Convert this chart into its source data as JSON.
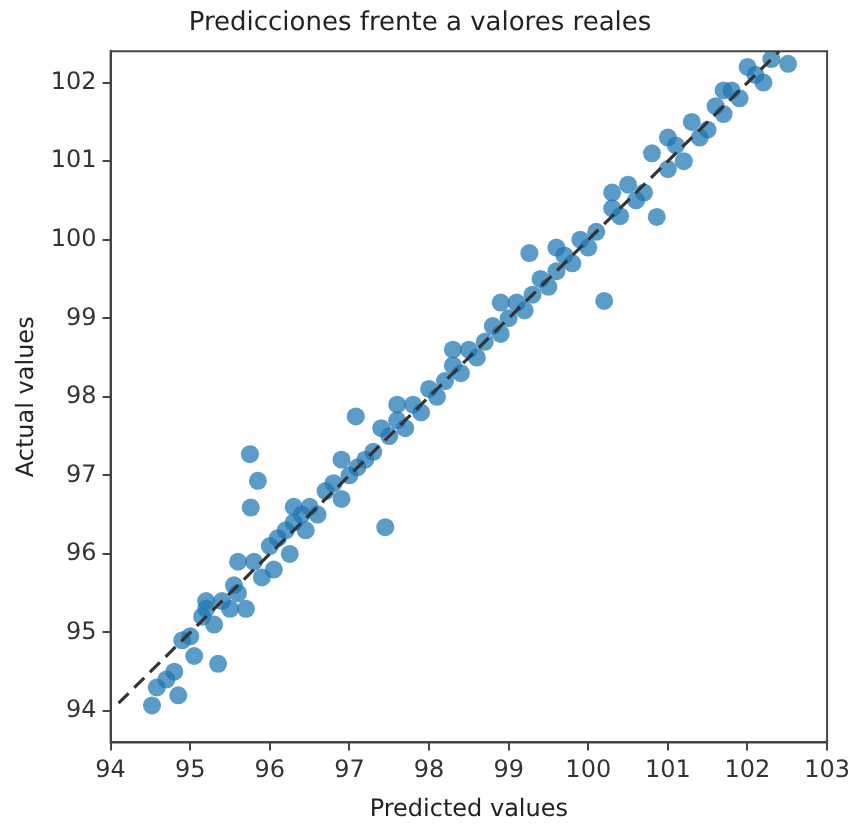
{
  "chart_data": {
    "type": "scatter",
    "title": "Predicciones frente a valores reales",
    "xlabel": "Predicted values",
    "ylabel": "Actual values",
    "xlim": [
      94,
      103
    ],
    "ylim": [
      93.6,
      102.4
    ],
    "xticks": [
      94,
      95,
      96,
      97,
      98,
      99,
      100,
      101,
      102,
      103
    ],
    "yticks": [
      94,
      95,
      96,
      97,
      98,
      99,
      100,
      101,
      102
    ],
    "grid": false,
    "legend": false,
    "marker": "circle",
    "series": [
      {
        "type": "scatter",
        "color": "#1f77b4",
        "x": [
          94.52,
          94.58,
          94.7,
          94.8,
          94.85,
          94.9,
          95.0,
          95.05,
          95.15,
          95.2,
          95.3,
          95.35,
          95.4,
          95.5,
          95.55,
          95.6,
          95.7,
          95.75,
          95.85,
          95.76,
          95.8,
          95.9,
          96.0,
          96.05,
          96.1,
          96.2,
          96.25,
          96.3,
          96.4,
          96.45,
          96.5,
          96.6,
          96.7,
          96.8,
          96.9,
          97.0,
          97.08,
          97.1,
          97.2,
          97.3,
          97.45,
          97.4,
          97.5,
          97.6,
          97.7,
          97.8,
          97.9,
          98.0,
          98.1,
          98.2,
          98.3,
          98.4,
          98.5,
          98.6,
          98.7,
          98.8,
          98.9,
          99.0,
          99.1,
          99.2,
          99.26,
          99.3,
          99.4,
          99.5,
          99.6,
          99.7,
          99.8,
          99.9,
          100.0,
          100.1,
          100.2,
          100.3,
          100.4,
          100.5,
          100.6,
          100.7,
          100.86,
          100.8,
          101.0,
          101.1,
          101.2,
          101.3,
          101.4,
          101.5,
          101.6,
          101.7,
          101.8,
          101.9,
          102.0,
          102.1,
          102.2,
          102.51,
          95.2,
          95.6,
          96.3,
          96.9,
          97.6,
          98.3,
          98.9,
          99.6,
          100.3,
          101.0,
          101.7,
          102.3
        ],
        "values": [
          94.07,
          94.3,
          94.4,
          94.5,
          94.2,
          94.9,
          94.95,
          94.7,
          95.2,
          95.3,
          95.1,
          94.6,
          95.4,
          95.3,
          95.6,
          95.5,
          95.3,
          97.27,
          96.93,
          96.59,
          95.9,
          95.7,
          96.1,
          95.8,
          96.2,
          96.3,
          96.0,
          96.4,
          96.5,
          96.3,
          96.6,
          96.5,
          96.8,
          96.9,
          96.7,
          97.0,
          97.75,
          97.1,
          97.2,
          97.3,
          96.34,
          97.6,
          97.5,
          97.7,
          97.6,
          97.9,
          97.8,
          98.1,
          98.0,
          98.2,
          98.4,
          98.3,
          98.6,
          98.5,
          98.7,
          98.9,
          98.8,
          99.0,
          99.2,
          99.1,
          99.83,
          99.3,
          99.5,
          99.4,
          99.6,
          99.8,
          99.7,
          100.0,
          99.9,
          100.1,
          99.22,
          100.4,
          100.3,
          100.7,
          100.5,
          100.6,
          100.29,
          101.1,
          100.9,
          101.2,
          101.0,
          101.5,
          101.3,
          101.4,
          101.7,
          101.6,
          101.9,
          101.8,
          102.2,
          102.1,
          102.0,
          102.24,
          95.4,
          95.9,
          96.6,
          97.2,
          97.9,
          98.6,
          99.2,
          99.9,
          100.6,
          101.3,
          101.9,
          102.3
        ]
      },
      {
        "type": "line",
        "color": "#333333",
        "line_style": "dashed",
        "marker": "none",
        "x": [
          94.1,
          102.4
        ],
        "values": [
          94.1,
          102.4
        ]
      }
    ]
  }
}
